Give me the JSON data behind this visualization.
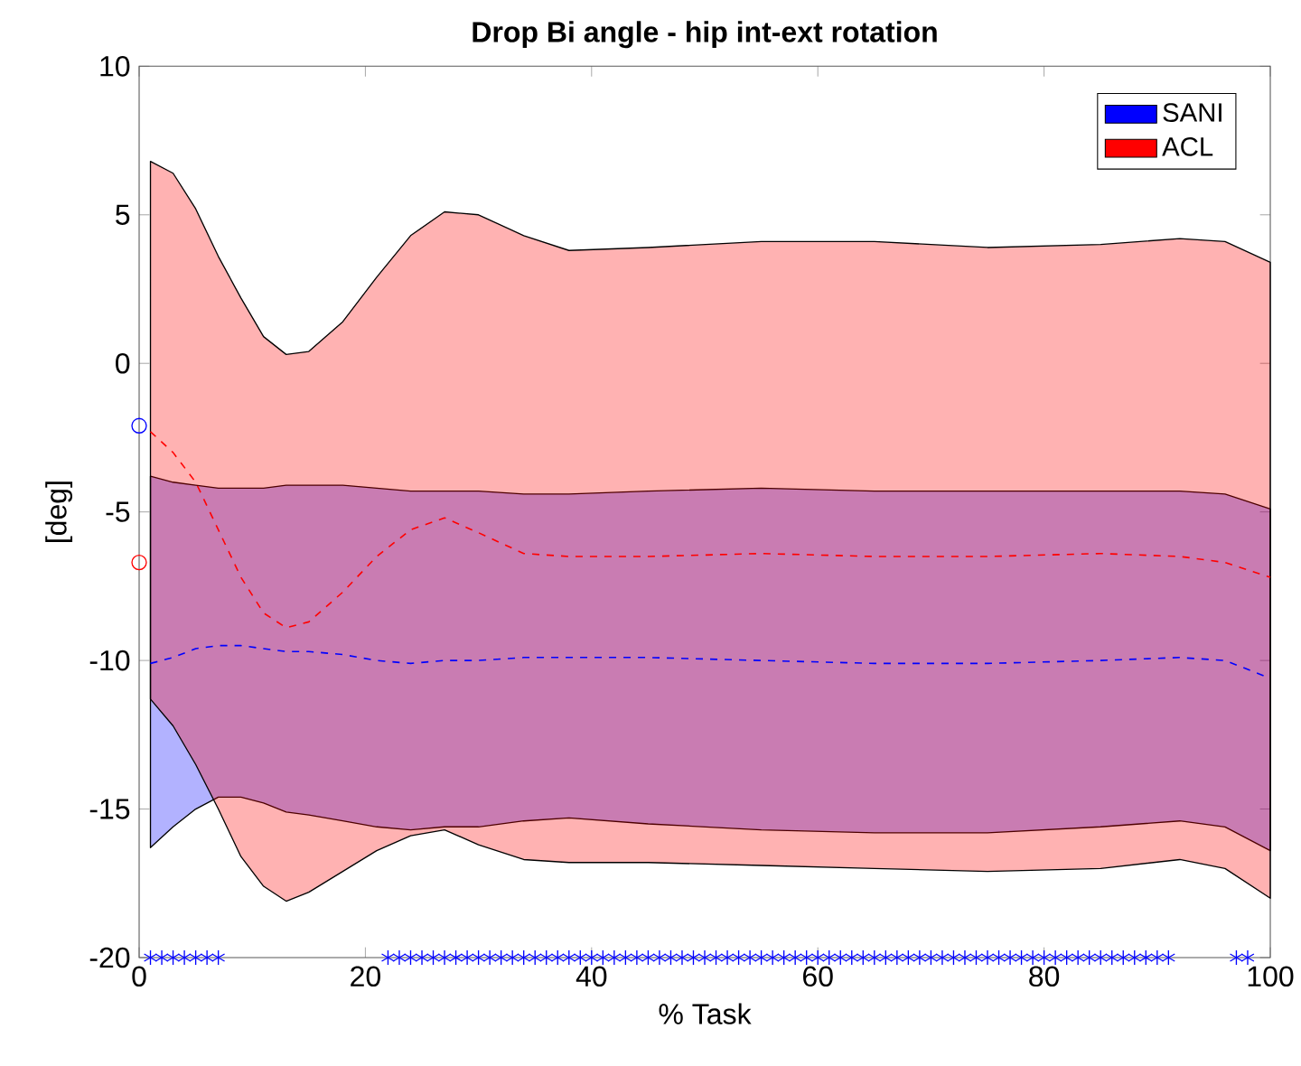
{
  "chart_data": {
    "type": "line",
    "title": "Drop Bi angle - hip int-ext rotation",
    "xlabel": "% Task",
    "ylabel": "[deg]",
    "xlim": [
      0,
      100
    ],
    "ylim": [
      -20,
      10
    ],
    "xticks": [
      0,
      20,
      40,
      60,
      80,
      100
    ],
    "yticks": [
      -20,
      -15,
      -10,
      -5,
      0,
      5,
      10
    ],
    "grid": false,
    "legend": "top right",
    "series": [
      {
        "name": "SANI",
        "type": "line",
        "color": "#0000ff",
        "line_style": "dashed",
        "marker": "none",
        "x": [
          1,
          3,
          5,
          7,
          9,
          11,
          13,
          15,
          18,
          21,
          24,
          27,
          30,
          34,
          38,
          45,
          55,
          65,
          75,
          85,
          92,
          96,
          100
        ],
        "values": [
          -10.1,
          -9.9,
          -9.6,
          -9.5,
          -9.5,
          -9.6,
          -9.7,
          -9.7,
          -9.8,
          -10.0,
          -10.1,
          -10.0,
          -10.0,
          -9.9,
          -9.9,
          -9.9,
          -10.0,
          -10.1,
          -10.1,
          -10.0,
          -9.9,
          -10.0,
          -10.6
        ],
        "lower": [
          -16.3,
          -15.6,
          -15.0,
          -14.6,
          -14.6,
          -14.8,
          -15.1,
          -15.2,
          -15.4,
          -15.6,
          -15.7,
          -15.6,
          -15.6,
          -15.4,
          -15.3,
          -15.5,
          -15.7,
          -15.8,
          -15.8,
          -15.6,
          -15.4,
          -15.6,
          -16.4
        ],
        "upper": [
          -3.8,
          -4.0,
          -4.1,
          -4.2,
          -4.2,
          -4.2,
          -4.1,
          -4.1,
          -4.1,
          -4.2,
          -4.3,
          -4.3,
          -4.3,
          -4.4,
          -4.4,
          -4.3,
          -4.2,
          -4.3,
          -4.3,
          -4.3,
          -4.3,
          -4.4,
          -4.9
        ]
      },
      {
        "name": "ACL",
        "type": "line",
        "color": "#ff0000",
        "line_style": "dashed",
        "marker": "none",
        "x": [
          1,
          3,
          5,
          7,
          9,
          11,
          13,
          15,
          18,
          21,
          24,
          27,
          30,
          34,
          38,
          45,
          55,
          65,
          75,
          85,
          92,
          96,
          100
        ],
        "values": [
          -2.3,
          -3.0,
          -4.0,
          -5.6,
          -7.2,
          -8.4,
          -8.9,
          -8.7,
          -7.7,
          -6.5,
          -5.6,
          -5.2,
          -5.7,
          -6.4,
          -6.5,
          -6.5,
          -6.4,
          -6.5,
          -6.5,
          -6.4,
          -6.5,
          -6.7,
          -7.2
        ],
        "lower": [
          -11.3,
          -12.2,
          -13.5,
          -15.0,
          -16.6,
          -17.6,
          -18.1,
          -17.8,
          -17.1,
          -16.4,
          -15.9,
          -15.7,
          -16.2,
          -16.7,
          -16.8,
          -16.8,
          -16.9,
          -17.0,
          -17.1,
          -17.0,
          -16.7,
          -17.0,
          -18.0
        ],
        "upper": [
          6.8,
          6.4,
          5.2,
          3.6,
          2.2,
          0.9,
          0.3,
          0.4,
          1.4,
          2.9,
          4.3,
          5.1,
          5.0,
          4.3,
          3.8,
          3.9,
          4.1,
          4.1,
          3.9,
          4.0,
          4.2,
          4.1,
          3.4
        ]
      },
      {
        "type": "scatter",
        "color": "#0000ff",
        "marker": "circle",
        "x": [
          0
        ],
        "values": [
          -2.1
        ]
      },
      {
        "type": "scatter",
        "color": "#ff0000",
        "marker": "circle",
        "x": [
          0
        ],
        "values": [
          -6.7
        ]
      },
      {
        "type": "scatter",
        "color": "#0000ff",
        "marker": "cross",
        "x": [
          1,
          2,
          3,
          4,
          5,
          6,
          7,
          22,
          23,
          24,
          25,
          26,
          27,
          28,
          29,
          30,
          31,
          32,
          33,
          34,
          35,
          36,
          37,
          38,
          39,
          40,
          41,
          42,
          43,
          44,
          45,
          46,
          47,
          48,
          49,
          50,
          51,
          52,
          53,
          54,
          55,
          56,
          57,
          58,
          59,
          60,
          61,
          62,
          63,
          64,
          65,
          66,
          67,
          68,
          69,
          70,
          71,
          72,
          73,
          74,
          75,
          76,
          77,
          78,
          79,
          80,
          81,
          82,
          83,
          84,
          85,
          86,
          87,
          88,
          89,
          90,
          91,
          97,
          98
        ],
        "values": [
          -20,
          -20,
          -20,
          -20,
          -20,
          -20,
          -20,
          -20,
          -20,
          -20,
          -20,
          -20,
          -20,
          -20,
          -20,
          -20,
          -20,
          -20,
          -20,
          -20,
          -20,
          -20,
          -20,
          -20,
          -20,
          -20,
          -20,
          -20,
          -20,
          -20,
          -20,
          -20,
          -20,
          -20,
          -20,
          -20,
          -20,
          -20,
          -20,
          -20,
          -20,
          -20,
          -20,
          -20,
          -20,
          -20,
          -20,
          -20,
          -20,
          -20,
          -20,
          -20,
          -20,
          -20,
          -20,
          -20,
          -20,
          -20,
          -20,
          -20,
          -20,
          -20,
          -20,
          -20,
          -20,
          -20,
          -20,
          -20,
          -20,
          -20,
          -20,
          -20,
          -20,
          -20,
          -20,
          -20,
          -20,
          -20,
          -20
        ]
      }
    ]
  }
}
